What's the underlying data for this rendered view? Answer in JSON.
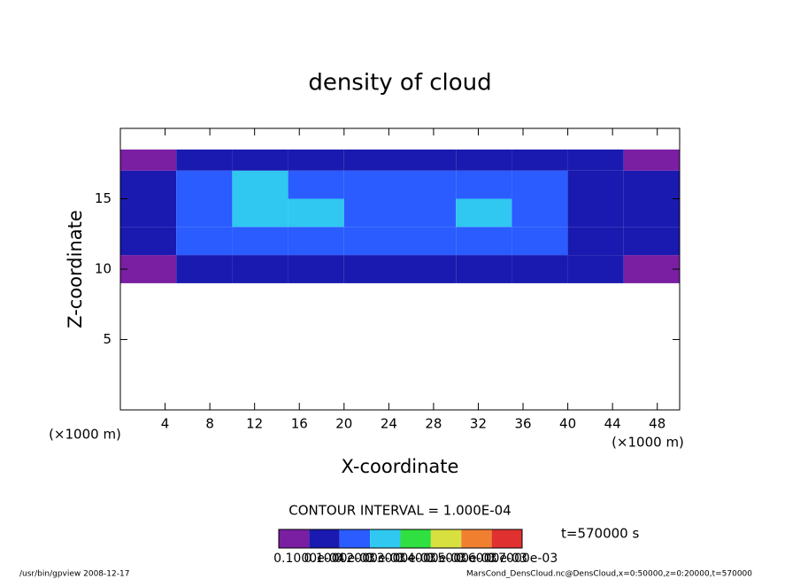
{
  "chart_data": {
    "type": "contour",
    "title": "density of cloud",
    "x_label": "X-coordinate",
    "y_label": "Z-coordinate",
    "x_unit": "(×1000 m)",
    "y_unit": "(×1000 m)",
    "xlim": [
      0,
      50
    ],
    "ylim": [
      0,
      20
    ],
    "xticks": [
      4,
      8,
      12,
      16,
      20,
      24,
      28,
      32,
      36,
      40,
      44,
      48
    ],
    "yticks": [
      5,
      10,
      15
    ],
    "x_edges": [
      0,
      5,
      10,
      15,
      20,
      25,
      30,
      35,
      40,
      45,
      50
    ],
    "z_edges": [
      9,
      11,
      13,
      15,
      17,
      18.5
    ],
    "values": [
      [
        8e-06,
        5e-05,
        5e-05,
        5e-05,
        4e-05,
        6e-05,
        7e-05,
        6e-05,
        4e-05,
        8e-06
      ],
      [
        6e-05,
        0.0001,
        0.00012,
        0.00012,
        0.0001,
        0.00012,
        0.00016,
        0.0001,
        6e-05,
        5e-05
      ],
      [
        6e-05,
        0.00016,
        0.00026,
        0.00022,
        0.00014,
        0.00018,
        0.0002,
        0.00014,
        8e-05,
        6e-05
      ],
      [
        6e-05,
        0.00012,
        0.0002,
        0.00018,
        0.00014,
        0.00016,
        0.00016,
        0.00012,
        8e-05,
        6e-05
      ],
      [
        8e-06,
        6e-05,
        8e-05,
        8e-05,
        6e-05,
        8e-05,
        8e-05,
        6e-05,
        5e-05,
        8e-06
      ]
    ],
    "contour_interval": "CONTOUR INTERVAL = 1.000E-04",
    "time_label": "t=570000 s",
    "colorbar": {
      "levels": [
        0,
        1e-05,
        0.0001,
        0.0002,
        0.0003,
        0.0004,
        0.0005,
        0.0006,
        0.0007
      ],
      "colors": [
        "#7a1fa2",
        "#1a1ab0",
        "#2a5cff",
        "#30c8f0",
        "#30e040",
        "#d8e040",
        "#f08030",
        "#e03030"
      ],
      "ticks": [
        {
          "value": 1e-05,
          "label": "0.1000e-04"
        },
        {
          "value": 0.0001,
          "label": "0.1000e-03"
        },
        {
          "value": 0.0002,
          "label": "0.2000e-03"
        },
        {
          "value": 0.0003,
          "label": "0.3000e-03"
        },
        {
          "value": 0.0004,
          "label": "0.4000e-03"
        },
        {
          "value": 0.0005,
          "label": "0.5000e-03"
        },
        {
          "value": 0.0006,
          "label": "0.6000e-03"
        },
        {
          "value": 0.0007,
          "label": "0.7000e-03"
        }
      ]
    },
    "footer_left": "/usr/bin/gpview  2008-12-17",
    "footer_right": "MarsCond_DensCloud.nc@DensCloud,x=0:50000,z=0:20000,t=570000"
  }
}
